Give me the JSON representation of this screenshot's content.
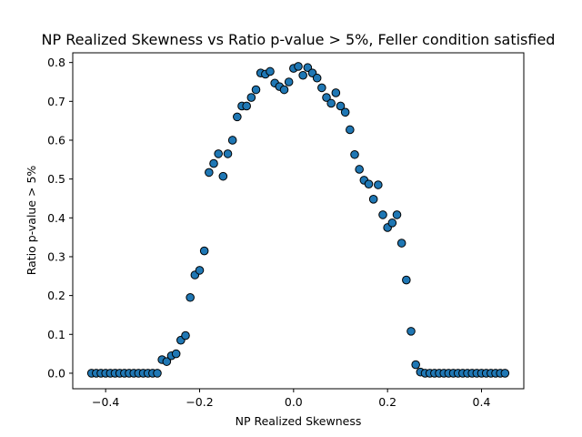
{
  "chart_data": {
    "type": "scatter",
    "title": "NP Realized Skewness vs Ratio p-value > 5%, Feller condition satisfied",
    "xlabel": "NP Realized Skewness",
    "ylabel": "Ratio p-value > 5%",
    "xlim": [
      -0.47,
      0.49
    ],
    "ylim": [
      -0.04,
      0.825
    ],
    "xticks": [
      -0.4,
      -0.2,
      0.0,
      0.2,
      0.4
    ],
    "xtick_labels": [
      "−0.4",
      "−0.2",
      "0.0",
      "0.2",
      "0.4"
    ],
    "yticks": [
      0.0,
      0.1,
      0.2,
      0.3,
      0.4,
      0.5,
      0.6,
      0.7,
      0.8
    ],
    "ytick_labels": [
      "0.0",
      "0.1",
      "0.2",
      "0.3",
      "0.4",
      "0.5",
      "0.6",
      "0.7",
      "0.8"
    ],
    "grid": false,
    "marker_color": "#1f77b4",
    "marker_edge_color": "#000000",
    "x": [
      -0.43,
      -0.42,
      -0.41,
      -0.4,
      -0.39,
      -0.38,
      -0.37,
      -0.36,
      -0.35,
      -0.34,
      -0.33,
      -0.32,
      -0.31,
      -0.3,
      -0.29,
      -0.28,
      -0.27,
      -0.26,
      -0.25,
      -0.24,
      -0.23,
      -0.22,
      -0.21,
      -0.2,
      -0.19,
      -0.18,
      -0.17,
      -0.16,
      -0.15,
      -0.14,
      -0.13,
      -0.12,
      -0.11,
      -0.1,
      -0.09,
      -0.08,
      -0.07,
      -0.06,
      -0.05,
      -0.04,
      -0.03,
      -0.02,
      -0.01,
      0.0,
      0.01,
      0.02,
      0.03,
      0.04,
      0.05,
      0.06,
      0.07,
      0.08,
      0.09,
      0.1,
      0.11,
      0.12,
      0.13,
      0.14,
      0.15,
      0.16,
      0.17,
      0.18,
      0.19,
      0.2,
      0.21,
      0.22,
      0.23,
      0.24,
      0.25,
      0.26,
      0.27,
      0.28,
      0.29,
      0.3,
      0.31,
      0.32,
      0.33,
      0.34,
      0.35,
      0.36,
      0.37,
      0.38,
      0.39,
      0.4,
      0.41,
      0.42,
      0.43,
      0.44,
      0.45
    ],
    "y": [
      0.0,
      0.0,
      0.0,
      0.0,
      0.0,
      0.0,
      0.0,
      0.0,
      0.0,
      0.0,
      0.0,
      0.0,
      0.0,
      0.0,
      0.0,
      0.035,
      0.03,
      0.045,
      0.05,
      0.085,
      0.097,
      0.195,
      0.253,
      0.265,
      0.315,
      0.517,
      0.54,
      0.565,
      0.507,
      0.565,
      0.6,
      0.66,
      0.688,
      0.688,
      0.71,
      0.73,
      0.773,
      0.77,
      0.777,
      0.747,
      0.738,
      0.73,
      0.75,
      0.785,
      0.79,
      0.767,
      0.787,
      0.773,
      0.76,
      0.735,
      0.71,
      0.695,
      0.722,
      0.688,
      0.672,
      0.627,
      0.563,
      0.525,
      0.497,
      0.487,
      0.448,
      0.485,
      0.408,
      0.375,
      0.387,
      0.408,
      0.335,
      0.24,
      0.108,
      0.022,
      0.003,
      0.0,
      0.0,
      0.0,
      0.0,
      0.0,
      0.0,
      0.0,
      0.0,
      0.0,
      0.0,
      0.0,
      0.0,
      0.0,
      0.0,
      0.0,
      0.0,
      0.0,
      0.0
    ]
  }
}
